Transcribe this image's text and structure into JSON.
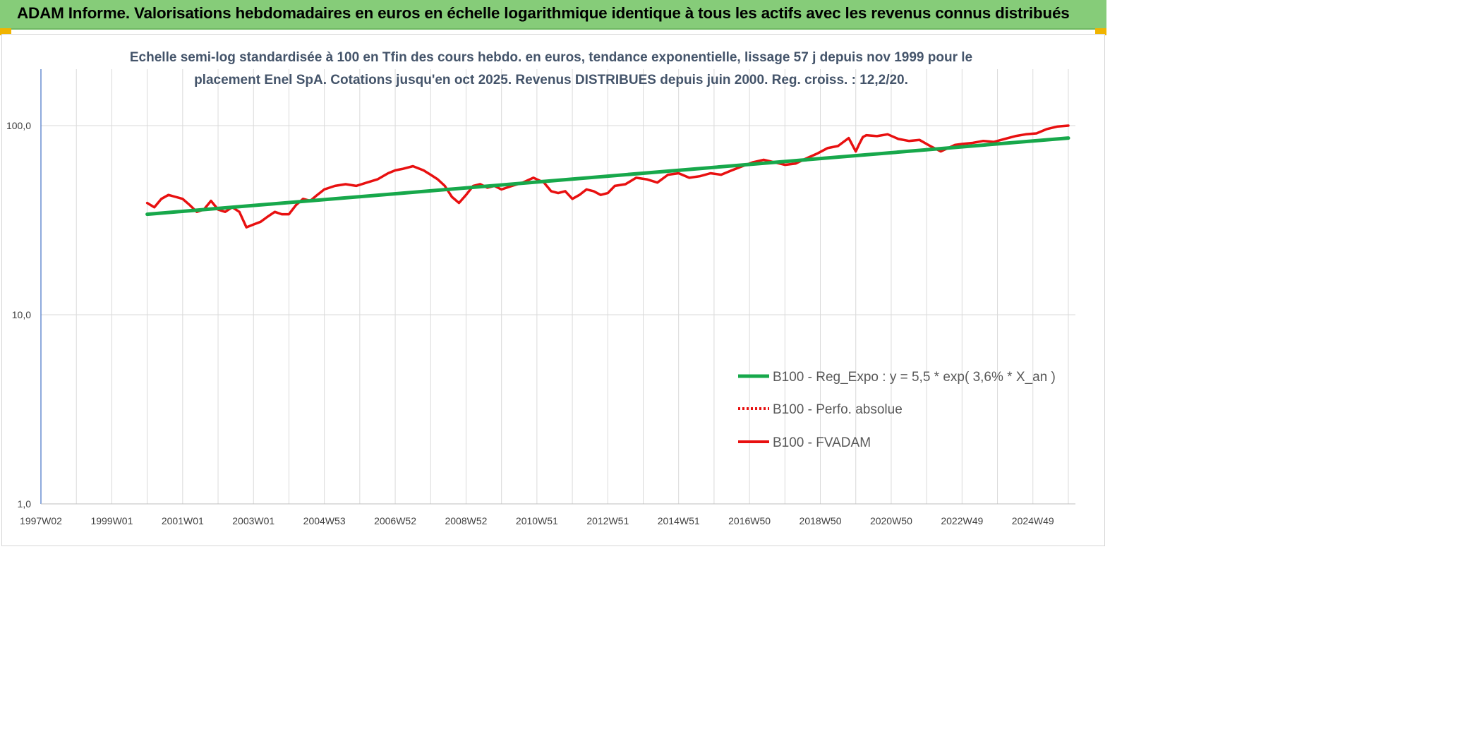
{
  "header": {
    "title": "ADAM Informe. Valorisations hebdomadaires en euros en échelle logarithmique identique à tous les actifs avec les revenus connus distribués"
  },
  "colors": {
    "banner": "#86cc79",
    "accent_corner": "#f0b400",
    "trend": "#17a84b",
    "fvadam": "#e81010",
    "subtitle": "#44546a"
  },
  "chart_data": {
    "type": "line",
    "title_lines": [
      "Echelle semi-log standardisée à 100 en Tfin des cours hebdo. en euros, tendance exponentielle, lissage 57 j depuis nov 1999 pour le",
      "placement Enel SpA. Cotations jusqu'en oct 2025. Revenus DISTRIBUES depuis juin 2000. Reg. croiss. : 12,2/20."
    ],
    "yscale": "log",
    "ylim": [
      1,
      200
    ],
    "yticks": [
      {
        "value": 1,
        "label": "1,0"
      },
      {
        "value": 10,
        "label": "10,0"
      },
      {
        "value": 100,
        "label": "100,0"
      }
    ],
    "xlim": [
      1997.0,
      2026.2
    ],
    "xticks": [
      {
        "value": 1997.0,
        "label": "1997W02"
      },
      {
        "value": 1999.0,
        "label": "1999W01"
      },
      {
        "value": 2001.0,
        "label": "2001W01"
      },
      {
        "value": 2003.0,
        "label": "2003W01"
      },
      {
        "value": 2005.0,
        "label": "2004W53"
      },
      {
        "value": 2007.0,
        "label": "2006W52"
      },
      {
        "value": 2009.0,
        "label": "2008W52"
      },
      {
        "value": 2011.0,
        "label": "2010W51"
      },
      {
        "value": 2013.0,
        "label": "2012W51"
      },
      {
        "value": 2015.0,
        "label": "2014W51"
      },
      {
        "value": 2017.0,
        "label": "2016W50"
      },
      {
        "value": 2019.0,
        "label": "2018W50"
      },
      {
        "value": 2021.0,
        "label": "2020W50"
      },
      {
        "value": 2023.0,
        "label": "2022W49"
      },
      {
        "value": 2025.0,
        "label": "2024W49"
      }
    ],
    "legend_position": "right",
    "series": [
      {
        "name": "B100 - Reg_Expo : y = 5,5 * exp( 3,6% *  X_an )",
        "style": "solid-thick",
        "color": "#17a84b",
        "x": [
          2000.0,
          2026.0
        ],
        "y": [
          34,
          86
        ]
      },
      {
        "name": "B100 - Perfo. absolue",
        "style": "dotted",
        "color": "#e81010",
        "x": [],
        "y": []
      },
      {
        "name": "B100 - FVADAM",
        "style": "solid",
        "color": "#e81010",
        "x": [
          2000.0,
          2000.2,
          2000.4,
          2000.6,
          2000.8,
          2001.0,
          2001.2,
          2001.4,
          2001.6,
          2001.8,
          2002.0,
          2002.2,
          2002.4,
          2002.6,
          2002.8,
          2003.0,
          2003.2,
          2003.4,
          2003.6,
          2003.8,
          2004.0,
          2004.2,
          2004.4,
          2004.6,
          2004.8,
          2005.0,
          2005.3,
          2005.6,
          2005.9,
          2006.2,
          2006.5,
          2006.8,
          2007.0,
          2007.2,
          2007.5,
          2007.8,
          2008.0,
          2008.2,
          2008.4,
          2008.6,
          2008.8,
          2009.0,
          2009.2,
          2009.4,
          2009.6,
          2009.8,
          2010.0,
          2010.3,
          2010.6,
          2010.9,
          2011.2,
          2011.4,
          2011.6,
          2011.8,
          2012.0,
          2012.2,
          2012.4,
          2012.6,
          2012.8,
          2013.0,
          2013.2,
          2013.5,
          2013.8,
          2014.1,
          2014.4,
          2014.7,
          2015.0,
          2015.3,
          2015.6,
          2015.9,
          2016.2,
          2016.5,
          2016.8,
          2017.1,
          2017.4,
          2017.7,
          2018.0,
          2018.3,
          2018.6,
          2018.9,
          2019.2,
          2019.5,
          2019.8,
          2020.0,
          2020.1,
          2020.2,
          2020.3,
          2020.6,
          2020.9,
          2021.2,
          2021.5,
          2021.8,
          2022.1,
          2022.4,
          2022.6,
          2022.8,
          2023.0,
          2023.3,
          2023.6,
          2023.9,
          2024.2,
          2024.5,
          2024.8,
          2025.1,
          2025.4,
          2025.7,
          2026.0
        ],
        "y": [
          39,
          37,
          41,
          43,
          42,
          41,
          38,
          35,
          36,
          40,
          36,
          35,
          37,
          35,
          29,
          30,
          31,
          33,
          35,
          34,
          34,
          38,
          41,
          40,
          43,
          46,
          48,
          49,
          48,
          50,
          52,
          56,
          58,
          59,
          61,
          58,
          55,
          52,
          48,
          42,
          39,
          43,
          48,
          49,
          47,
          48,
          46,
          48,
          50,
          53,
          50,
          45,
          44,
          45,
          41,
          43,
          46,
          45,
          43,
          44,
          48,
          49,
          53,
          52,
          50,
          55,
          56,
          53,
          54,
          56,
          55,
          58,
          61,
          64,
          66,
          64,
          62,
          63,
          67,
          71,
          76,
          78,
          86,
          73,
          80,
          87,
          89,
          88,
          90,
          85,
          83,
          84,
          78,
          73,
          76,
          79,
          80,
          81,
          83,
          82,
          85,
          88,
          90,
          91,
          96,
          99,
          100
        ]
      }
    ]
  }
}
